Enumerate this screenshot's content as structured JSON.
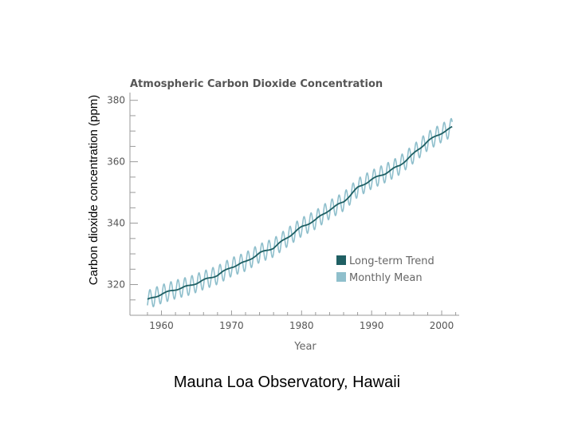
{
  "caption": "Mauna Loa Observatory, Hawaii",
  "chart_data": {
    "type": "line",
    "title": "Atmospheric Carbon Dioxide Concentration",
    "ylabel": "Carbon dioxide concentration (ppm)",
    "xlabel": "Year",
    "xlim": [
      1955.5,
      2002.5
    ],
    "ylim": [
      310,
      382
    ],
    "x_ticks": [
      1960,
      1970,
      1980,
      1990,
      2000
    ],
    "y_ticks": [
      320,
      340,
      360,
      380
    ],
    "legend_position": "lower-right",
    "series": [
      {
        "name": "Long-term Trend",
        "color": "#1f5f63",
        "x": [
          1958,
          1960,
          1962,
          1964,
          1966,
          1968,
          1970,
          1972,
          1974,
          1976,
          1978,
          1980,
          1982,
          1984,
          1986,
          1988,
          1990,
          1992,
          1994,
          1996,
          1998,
          2000,
          2001.5
        ],
        "values": [
          315,
          316.9,
          318.4,
          319.6,
          321.4,
          323.1,
          325.7,
          327.4,
          330.2,
          332,
          335.4,
          338.7,
          341.1,
          344.4,
          347,
          351.5,
          354.2,
          356.3,
          358.8,
          362.6,
          366.7,
          369.4,
          371.2
        ]
      },
      {
        "name": "Monthly Mean",
        "color": "#8fbfcc",
        "seasonal_amplitude": 3,
        "x": [
          1958,
          1960,
          1962,
          1964,
          1966,
          1968,
          1970,
          1972,
          1974,
          1976,
          1978,
          1980,
          1982,
          1984,
          1986,
          1988,
          1990,
          1992,
          1994,
          1996,
          1998,
          2000,
          2001.5
        ],
        "values": [
          315,
          316.9,
          318.4,
          319.6,
          321.4,
          323.1,
          325.7,
          327.4,
          330.2,
          332,
          335.4,
          338.7,
          341.1,
          344.4,
          347,
          351.5,
          354.2,
          356.3,
          358.8,
          362.6,
          366.7,
          369.4,
          371.2
        ]
      }
    ]
  }
}
